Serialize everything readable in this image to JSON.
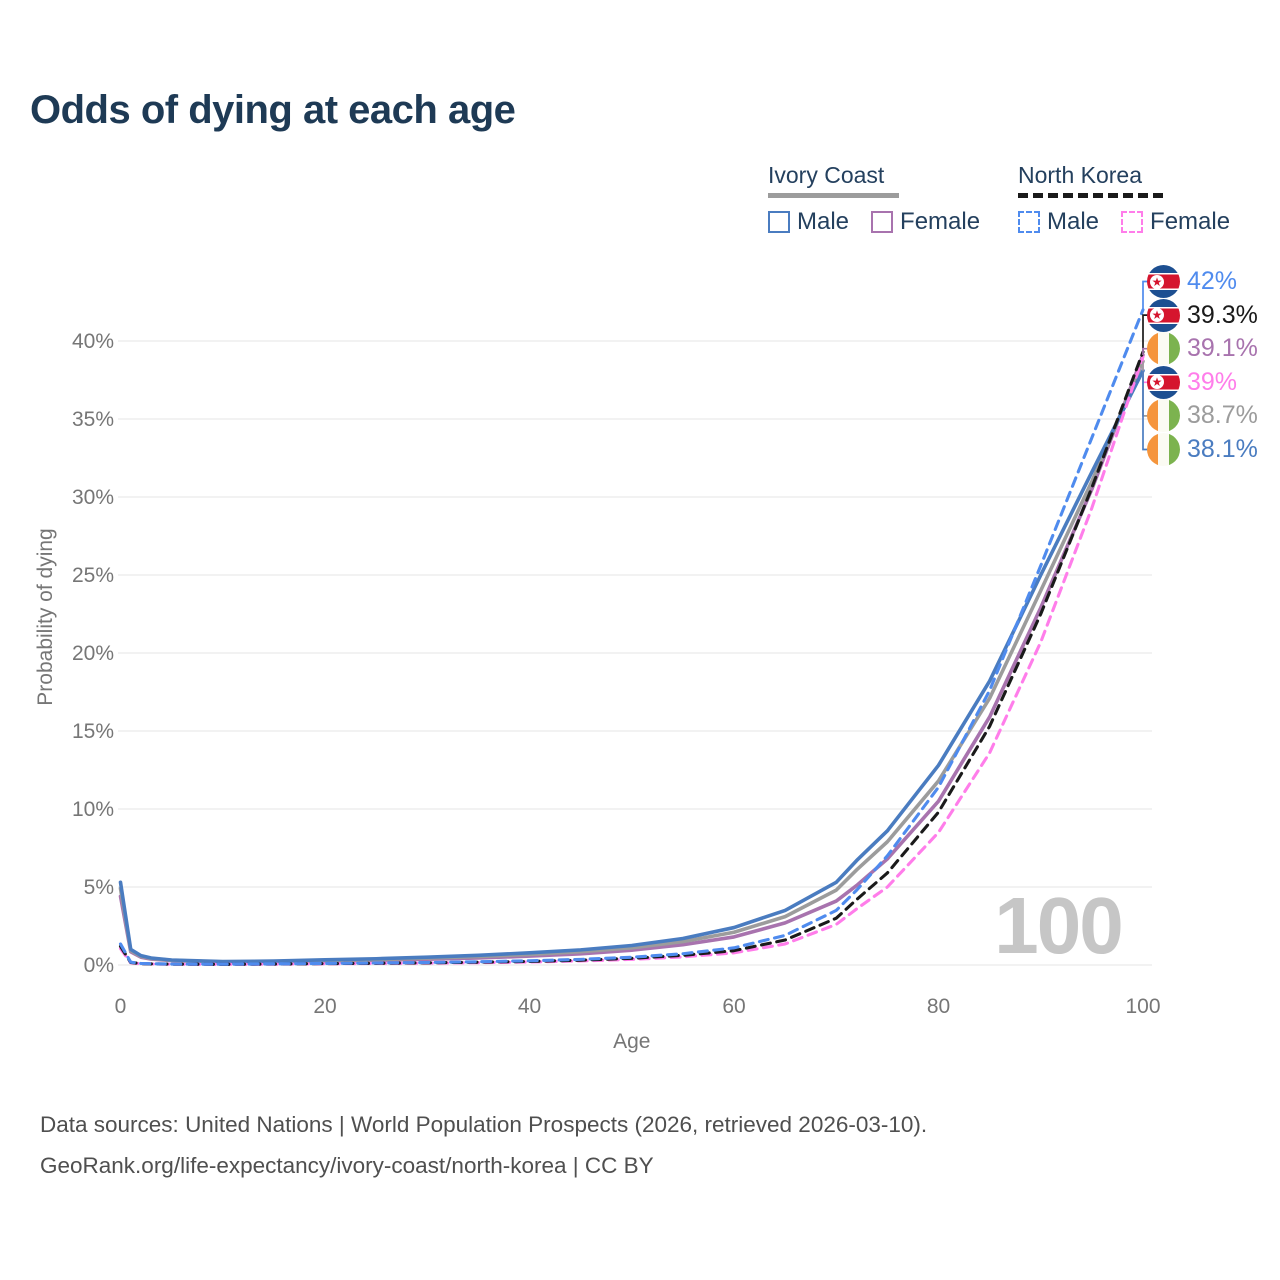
{
  "title": "Odds of dying at each age",
  "legend": {
    "groups": [
      {
        "name": "Ivory Coast",
        "line_style": "solid",
        "underline_color": "#9c9c9c",
        "items": [
          {
            "label": "Male",
            "color": "#4a7cc0"
          },
          {
            "label": "Female",
            "color": "#a873ae"
          }
        ]
      },
      {
        "name": "North Korea",
        "line_style": "dashed",
        "underline_color": "#1a1a1a",
        "items": [
          {
            "label": "Male",
            "color": "#4f8bee"
          },
          {
            "label": "Female",
            "color": "#ff7dea"
          }
        ]
      }
    ]
  },
  "chart_data": {
    "type": "line",
    "title": "Odds of dying at each age",
    "xlabel": "Age",
    "ylabel": "Probability of dying",
    "xlim": [
      0,
      100
    ],
    "ylim_percent": [
      0,
      43
    ],
    "xticks": [
      0,
      20,
      40,
      60,
      80,
      100
    ],
    "yticks_percent": [
      0,
      5,
      10,
      15,
      20,
      25,
      30,
      35,
      40
    ],
    "grid": "horizontal",
    "watermark": "100",
    "x": [
      0,
      1,
      2,
      3,
      5,
      10,
      15,
      20,
      25,
      30,
      35,
      40,
      45,
      50,
      55,
      60,
      65,
      70,
      72,
      75,
      80,
      85,
      90,
      95,
      100
    ],
    "series": [
      {
        "name": "Ivory Coast Female",
        "style": "solid",
        "color": "#a873ae",
        "values": [
          4.4,
          0.85,
          0.5,
          0.38,
          0.28,
          0.18,
          0.2,
          0.25,
          0.3,
          0.37,
          0.45,
          0.57,
          0.72,
          0.95,
          1.3,
          1.8,
          2.7,
          4.1,
          5.1,
          6.8,
          10.5,
          15.9,
          22.9,
          30.5,
          39.1
        ]
      },
      {
        "name": "Ivory Coast Both sexes",
        "style": "solid",
        "color": "#9c9c9c",
        "values": [
          4.9,
          0.92,
          0.55,
          0.42,
          0.3,
          0.2,
          0.22,
          0.29,
          0.35,
          0.44,
          0.54,
          0.68,
          0.85,
          1.1,
          1.5,
          2.1,
          3.1,
          4.8,
          6.1,
          7.9,
          11.8,
          17.1,
          24.0,
          31.0,
          38.7
        ]
      },
      {
        "name": "Ivory Coast Male",
        "style": "solid",
        "color": "#4a7cc0",
        "values": [
          5.3,
          1.0,
          0.6,
          0.45,
          0.32,
          0.22,
          0.25,
          0.33,
          0.4,
          0.5,
          0.62,
          0.78,
          0.97,
          1.25,
          1.7,
          2.4,
          3.5,
          5.3,
          6.7,
          8.6,
          12.8,
          18.2,
          25.0,
          31.6,
          38.1
        ]
      },
      {
        "name": "North Korea Female",
        "style": "dashed",
        "color": "#ff7dea",
        "values": [
          1.05,
          0.14,
          0.08,
          0.065,
          0.05,
          0.04,
          0.05,
          0.08,
          0.1,
          0.12,
          0.15,
          0.19,
          0.26,
          0.36,
          0.52,
          0.78,
          1.35,
          2.6,
          3.6,
          5.0,
          8.5,
          13.6,
          20.7,
          29.3,
          39.0
        ]
      },
      {
        "name": "North Korea Both sexes",
        "style": "dashed",
        "color": "#1a1a1a",
        "values": [
          1.2,
          0.16,
          0.09,
          0.07,
          0.055,
          0.045,
          0.06,
          0.09,
          0.11,
          0.14,
          0.18,
          0.23,
          0.31,
          0.43,
          0.62,
          0.92,
          1.6,
          3.0,
          4.2,
          5.9,
          9.8,
          15.3,
          22.5,
          30.6,
          39.3
        ]
      },
      {
        "name": "North Korea Male",
        "style": "dashed",
        "color": "#4f8bee",
        "values": [
          1.35,
          0.18,
          0.1,
          0.08,
          0.06,
          0.05,
          0.07,
          0.1,
          0.13,
          0.16,
          0.21,
          0.27,
          0.36,
          0.5,
          0.72,
          1.1,
          1.9,
          3.5,
          4.8,
          7.0,
          11.4,
          17.6,
          25.6,
          33.8,
          42.0
        ]
      }
    ]
  },
  "end_labels": [
    {
      "series": "North Korea Male",
      "flag": "north-korea",
      "value": "42%",
      "y_percent": 42.0,
      "color": "#4f8bee"
    },
    {
      "series": "North Korea Both sexes",
      "flag": "north-korea",
      "value": "39.3%",
      "y_percent": 39.3,
      "color": "#1a1a1a"
    },
    {
      "series": "Ivory Coast Female",
      "flag": "ivory-coast",
      "value": "39.1%",
      "y_percent": 39.1,
      "color": "#a873ae"
    },
    {
      "series": "North Korea Female",
      "flag": "north-korea",
      "value": "39%",
      "y_percent": 39.0,
      "color": "#ff7dea"
    },
    {
      "series": "Ivory Coast Both sexes",
      "flag": "ivory-coast",
      "value": "38.7%",
      "y_percent": 38.7,
      "color": "#9c9c9c"
    },
    {
      "series": "Ivory Coast Male",
      "flag": "ivory-coast",
      "value": "38.1%",
      "y_percent": 38.1,
      "color": "#4a7cc0"
    }
  ],
  "footer": {
    "line1": "Data sources: United Nations | World Population Prospects (2026, retrieved 2026-03-10).",
    "line2": "GeoRank.org/life-expectancy/ivory-coast/north-korea | CC BY"
  }
}
